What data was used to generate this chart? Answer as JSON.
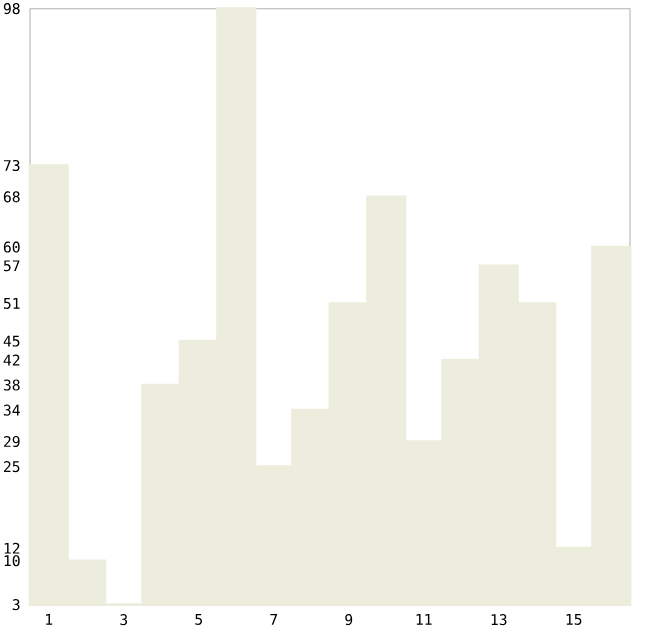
{
  "chart_data": {
    "type": "bar",
    "categories": [
      "1",
      null,
      "3",
      null,
      "5",
      null,
      "7",
      null,
      "9",
      null,
      "11",
      null,
      "13",
      null,
      "15",
      null
    ],
    "values": [
      73,
      10,
      3,
      38,
      45,
      98,
      25,
      34,
      51,
      68,
      29,
      42,
      57,
      51,
      12,
      60
    ],
    "color": "#ededde",
    "ylim": [
      3,
      98
    ],
    "yticks": [
      3,
      10,
      12,
      25,
      29,
      34,
      38,
      42,
      45,
      51,
      57,
      60,
      68,
      73,
      98
    ],
    "grid": false
  }
}
